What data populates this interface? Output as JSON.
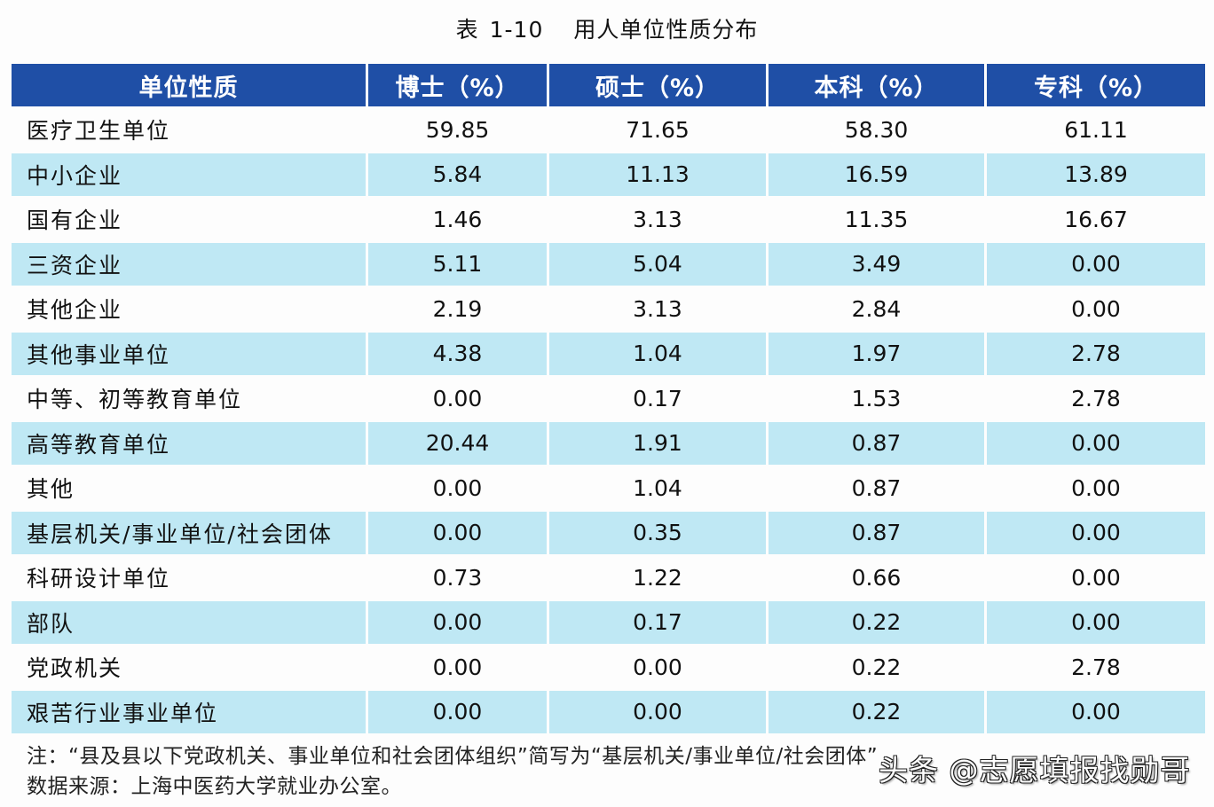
{
  "title": {
    "prefix": "表",
    "number": "1-10",
    "text": "用人单位性质分布"
  },
  "table": {
    "headers": [
      "单位性质",
      "博士（%）",
      "硕士（%）",
      "本科（%）",
      "专科（%）"
    ],
    "rows": [
      {
        "label": "医疗卫生单位",
        "values": [
          "59.85",
          "71.65",
          "58.30",
          "61.11"
        ]
      },
      {
        "label": "中小企业",
        "values": [
          "5.84",
          "11.13",
          "16.59",
          "13.89"
        ]
      },
      {
        "label": "国有企业",
        "values": [
          "1.46",
          "3.13",
          "11.35",
          "16.67"
        ]
      },
      {
        "label": "三资企业",
        "values": [
          "5.11",
          "5.04",
          "3.49",
          "0.00"
        ]
      },
      {
        "label": "其他企业",
        "values": [
          "2.19",
          "3.13",
          "2.84",
          "0.00"
        ]
      },
      {
        "label": "其他事业单位",
        "values": [
          "4.38",
          "1.04",
          "1.97",
          "2.78"
        ]
      },
      {
        "label": "中等、初等教育单位",
        "values": [
          "0.00",
          "0.17",
          "1.53",
          "2.78"
        ]
      },
      {
        "label": "高等教育单位",
        "values": [
          "20.44",
          "1.91",
          "0.87",
          "0.00"
        ]
      },
      {
        "label": "其他",
        "values": [
          "0.00",
          "1.04",
          "0.87",
          "0.00"
        ]
      },
      {
        "label": "基层机关/事业单位/社会团体",
        "values": [
          "0.00",
          "0.35",
          "0.87",
          "0.00"
        ]
      },
      {
        "label": "科研设计单位",
        "values": [
          "0.73",
          "1.22",
          "0.66",
          "0.00"
        ]
      },
      {
        "label": "部队",
        "values": [
          "0.00",
          "0.17",
          "0.22",
          "0.00"
        ]
      },
      {
        "label": "党政机关",
        "values": [
          "0.00",
          "0.00",
          "0.22",
          "2.78"
        ]
      },
      {
        "label": "艰苦行业事业单位",
        "values": [
          "0.00",
          "0.00",
          "0.22",
          "0.00"
        ]
      }
    ]
  },
  "notes": {
    "note": "注：“县及县以下党政机关、事业单位和社会团体组织”简写为“基层机关/事业单位/社会团体”",
    "source": "数据来源：上海中医药大学就业办公室。"
  },
  "watermark": "头条 @志愿填报找勋哥",
  "colors": {
    "header_bg": "#1f4fa6",
    "header_text": "#ffffff",
    "shaded_row": "#bfe8f4",
    "plain_row": "#fdfdfd"
  }
}
